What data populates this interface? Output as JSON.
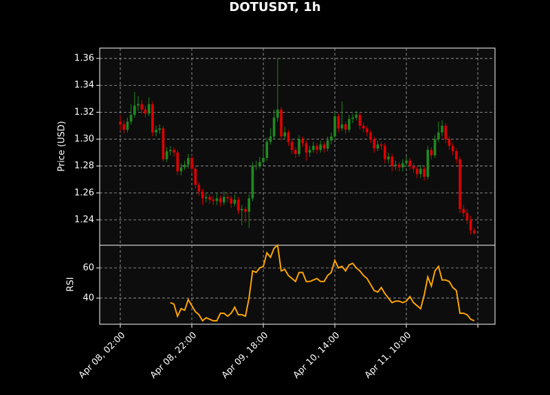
{
  "chart_data": [
    {
      "type": "candlestick",
      "title": "DOTUSDT, 1h",
      "ylabel": "Price (USD)",
      "x": [
        "Apr 08, 02:00",
        "Apr 08, 03:00",
        "Apr 08, 04:00",
        "Apr 08, 05:00",
        "Apr 08, 06:00",
        "Apr 08, 07:00",
        "Apr 08, 08:00",
        "Apr 08, 09:00",
        "Apr 08, 10:00",
        "Apr 08, 11:00",
        "Apr 08, 12:00",
        "Apr 08, 13:00",
        "Apr 08, 14:00",
        "Apr 08, 15:00",
        "Apr 08, 16:00",
        "Apr 08, 17:00",
        "Apr 08, 18:00",
        "Apr 08, 19:00",
        "Apr 08, 20:00",
        "Apr 08, 21:00",
        "Apr 08, 22:00",
        "Apr 08, 23:00",
        "Apr 09, 00:00",
        "Apr 09, 01:00",
        "Apr 09, 02:00",
        "Apr 09, 03:00",
        "Apr 09, 04:00",
        "Apr 09, 05:00",
        "Apr 09, 06:00",
        "Apr 09, 07:00",
        "Apr 09, 08:00",
        "Apr 09, 09:00",
        "Apr 09, 10:00",
        "Apr 09, 11:00",
        "Apr 09, 12:00",
        "Apr 09, 13:00",
        "Apr 09, 14:00",
        "Apr 09, 15:00",
        "Apr 09, 16:00",
        "Apr 09, 17:00",
        "Apr 09, 18:00",
        "Apr 09, 19:00",
        "Apr 09, 20:00",
        "Apr 09, 21:00",
        "Apr 09, 22:00",
        "Apr 09, 23:00",
        "Apr 10, 00:00",
        "Apr 10, 01:00",
        "Apr 10, 02:00",
        "Apr 10, 03:00",
        "Apr 10, 04:00",
        "Apr 10, 05:00",
        "Apr 10, 06:00",
        "Apr 10, 07:00",
        "Apr 10, 08:00",
        "Apr 10, 09:00",
        "Apr 10, 10:00",
        "Apr 10, 11:00",
        "Apr 10, 12:00",
        "Apr 10, 13:00",
        "Apr 10, 14:00",
        "Apr 10, 15:00",
        "Apr 10, 16:00",
        "Apr 10, 17:00",
        "Apr 10, 18:00",
        "Apr 10, 19:00",
        "Apr 10, 20:00",
        "Apr 10, 21:00",
        "Apr 10, 22:00",
        "Apr 10, 23:00",
        "Apr 11, 00:00",
        "Apr 11, 01:00",
        "Apr 11, 02:00",
        "Apr 11, 03:00",
        "Apr 11, 04:00",
        "Apr 11, 05:00",
        "Apr 11, 06:00",
        "Apr 11, 07:00",
        "Apr 11, 08:00",
        "Apr 11, 09:00",
        "Apr 11, 10:00",
        "Apr 11, 11:00",
        "Apr 11, 12:00",
        "Apr 11, 13:00",
        "Apr 11, 14:00",
        "Apr 11, 15:00",
        "Apr 11, 16:00",
        "Apr 11, 17:00",
        "Apr 11, 18:00",
        "Apr 11, 19:00",
        "Apr 11, 20:00",
        "Apr 11, 21:00",
        "Apr 11, 22:00",
        "Apr 11, 23:00",
        "Apr 12, 00:00",
        "Apr 12, 01:00",
        "Apr 12, 02:00",
        "Apr 12, 03:00",
        "Apr 12, 04:00",
        "Apr 12, 05:00"
      ],
      "open": [
        1.313,
        1.311,
        1.307,
        1.313,
        1.318,
        1.325,
        1.326,
        1.322,
        1.319,
        1.326,
        1.305,
        1.307,
        1.308,
        1.285,
        1.291,
        1.292,
        1.29,
        1.276,
        1.279,
        1.281,
        1.286,
        1.278,
        1.266,
        1.261,
        1.256,
        1.257,
        1.255,
        1.254,
        1.256,
        1.253,
        1.257,
        1.256,
        1.252,
        1.255,
        1.247,
        1.248,
        1.246,
        1.256,
        1.28,
        1.28,
        1.283,
        1.286,
        1.298,
        1.302,
        1.316,
        1.322,
        1.302,
        1.305,
        1.298,
        1.292,
        1.289,
        1.3,
        1.297,
        1.29,
        1.292,
        1.295,
        1.292,
        1.296,
        1.293,
        1.299,
        1.302,
        1.317,
        1.308,
        1.311,
        1.307,
        1.315,
        1.316,
        1.318,
        1.31,
        1.308,
        1.305,
        1.3,
        1.293,
        1.296,
        1.295,
        1.285,
        1.287,
        1.28,
        1.281,
        1.279,
        1.282,
        1.284,
        1.28,
        1.278,
        1.274,
        1.278,
        1.272,
        1.292,
        1.288,
        1.3,
        1.305,
        1.31,
        1.3,
        1.295,
        1.291,
        1.285,
        1.248,
        1.245,
        1.24,
        1.232
      ],
      "high": [
        1.318,
        1.314,
        1.316,
        1.326,
        1.335,
        1.332,
        1.329,
        1.325,
        1.331,
        1.328,
        1.31,
        1.311,
        1.31,
        1.294,
        1.295,
        1.294,
        1.292,
        1.282,
        1.284,
        1.289,
        1.288,
        1.28,
        1.268,
        1.263,
        1.26,
        1.259,
        1.258,
        1.26,
        1.258,
        1.261,
        1.26,
        1.258,
        1.259,
        1.257,
        1.251,
        1.25,
        1.259,
        1.283,
        1.284,
        1.287,
        1.295,
        1.301,
        1.308,
        1.322,
        1.36,
        1.324,
        1.309,
        1.307,
        1.3,
        1.294,
        1.303,
        1.302,
        1.299,
        1.295,
        1.298,
        1.297,
        1.299,
        1.298,
        1.302,
        1.305,
        1.32,
        1.319,
        1.328,
        1.313,
        1.318,
        1.319,
        1.321,
        1.32,
        1.312,
        1.31,
        1.307,
        1.302,
        1.299,
        1.298,
        1.297,
        1.29,
        1.289,
        1.284,
        1.283,
        1.285,
        1.287,
        1.286,
        1.282,
        1.28,
        1.281,
        1.28,
        1.295,
        1.294,
        1.303,
        1.313,
        1.314,
        1.312,
        1.302,
        1.297,
        1.293,
        1.287,
        1.251,
        1.248,
        1.243,
        1.234
      ],
      "low": [
        1.306,
        1.304,
        1.305,
        1.311,
        1.316,
        1.321,
        1.319,
        1.316,
        1.317,
        1.302,
        1.302,
        1.304,
        1.283,
        1.283,
        1.288,
        1.287,
        1.273,
        1.273,
        1.277,
        1.278,
        1.275,
        1.263,
        1.258,
        1.251,
        1.253,
        1.252,
        1.251,
        1.251,
        1.25,
        1.251,
        1.253,
        1.249,
        1.25,
        1.244,
        1.236,
        1.238,
        1.234,
        1.254,
        1.277,
        1.278,
        1.281,
        1.284,
        1.296,
        1.3,
        1.313,
        1.299,
        1.3,
        1.295,
        1.289,
        1.286,
        1.287,
        1.294,
        1.284,
        1.287,
        1.29,
        1.289,
        1.29,
        1.29,
        1.291,
        1.296,
        1.3,
        1.305,
        1.306,
        1.304,
        1.305,
        1.312,
        1.314,
        1.307,
        1.305,
        1.302,
        1.297,
        1.29,
        1.291,
        1.292,
        1.282,
        1.282,
        1.276,
        1.277,
        1.276,
        1.276,
        1.279,
        1.277,
        1.275,
        1.271,
        1.271,
        1.269,
        1.27,
        1.285,
        1.286,
        1.298,
        1.302,
        1.297,
        1.292,
        1.288,
        1.282,
        1.245,
        1.242,
        1.237,
        1.229,
        1.229
      ],
      "close": [
        1.311,
        1.307,
        1.313,
        1.318,
        1.325,
        1.326,
        1.322,
        1.319,
        1.326,
        1.305,
        1.307,
        1.308,
        1.285,
        1.291,
        1.292,
        1.29,
        1.276,
        1.279,
        1.281,
        1.286,
        1.278,
        1.266,
        1.261,
        1.256,
        1.257,
        1.255,
        1.254,
        1.256,
        1.253,
        1.257,
        1.256,
        1.252,
        1.255,
        1.247,
        1.248,
        1.246,
        1.256,
        1.28,
        1.28,
        1.283,
        1.286,
        1.298,
        1.302,
        1.316,
        1.322,
        1.302,
        1.305,
        1.298,
        1.292,
        1.289,
        1.3,
        1.297,
        1.29,
        1.292,
        1.295,
        1.292,
        1.296,
        1.293,
        1.299,
        1.302,
        1.317,
        1.308,
        1.311,
        1.307,
        1.315,
        1.316,
        1.318,
        1.31,
        1.308,
        1.305,
        1.3,
        1.293,
        1.296,
        1.295,
        1.285,
        1.287,
        1.28,
        1.281,
        1.279,
        1.282,
        1.284,
        1.28,
        1.278,
        1.274,
        1.278,
        1.272,
        1.292,
        1.288,
        1.3,
        1.305,
        1.31,
        1.3,
        1.295,
        1.291,
        1.285,
        1.248,
        1.245,
        1.24,
        1.232,
        1.23
      ],
      "up_color": "#1f8a1f",
      "down_color": "#e00000",
      "xlim": [
        -5.77,
        104.8
      ],
      "xticks": [
        {
          "value": 0,
          "label": "Apr 08, 02:00"
        },
        {
          "value": 20,
          "label": "Apr 08, 22:00"
        },
        {
          "value": 40,
          "label": "Apr 09, 18:00"
        },
        {
          "value": 60,
          "label": "Apr 10, 14:00"
        },
        {
          "value": 80,
          "label": "Apr 11, 10:00"
        },
        {
          "value": 100,
          "label": null
        }
      ],
      "ylim": [
        1.2211,
        1.3677
      ],
      "yticks": [
        1.24,
        1.26,
        1.28,
        {
          "value": 1.3,
          "label": "1.30"
        },
        1.32,
        1.34,
        1.36
      ],
      "grid": true
    },
    {
      "type": "line",
      "ylabel": "RSI",
      "color": "#ffa500",
      "values": [
        null,
        null,
        null,
        null,
        null,
        null,
        null,
        null,
        null,
        null,
        null,
        null,
        null,
        null,
        37,
        36,
        28,
        33,
        32,
        39,
        35,
        31,
        29,
        25,
        27,
        26,
        25,
        25,
        30,
        30,
        28,
        30,
        34,
        29,
        29,
        28,
        40,
        58,
        57,
        60,
        61,
        70,
        67,
        73,
        75,
        58,
        59,
        55,
        53,
        51,
        57,
        57,
        51,
        51,
        52,
        53,
        51,
        51,
        55,
        57,
        65,
        60,
        61,
        58,
        62,
        63,
        60,
        58,
        55,
        53,
        49,
        45,
        44,
        47,
        43,
        40,
        37,
        38,
        38,
        37,
        38,
        41,
        37,
        35,
        33,
        42,
        54,
        48,
        58,
        61,
        52,
        52,
        51,
        47,
        45,
        30,
        30,
        29,
        26,
        25
      ],
      "ylim": [
        22.7,
        75
      ],
      "yticks": [
        40,
        60
      ],
      "grid": true
    }
  ]
}
